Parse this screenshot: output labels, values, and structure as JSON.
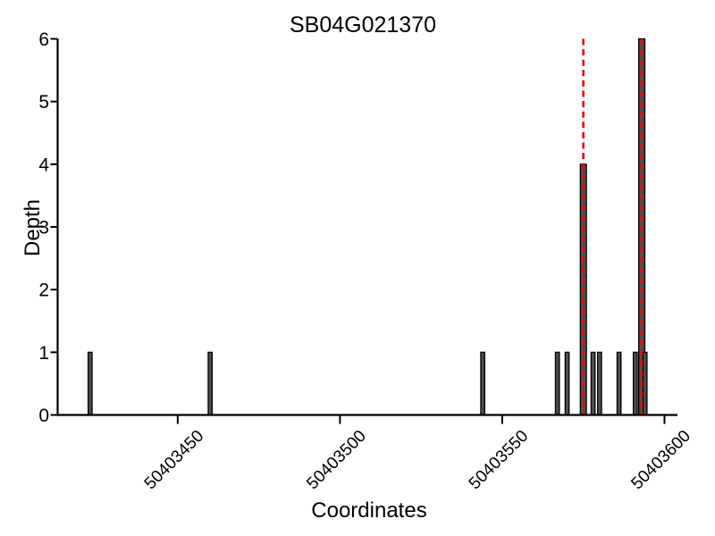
{
  "figure": {
    "title": "SB04G021370",
    "xlabel": "Coordinates",
    "ylabel": "Depth"
  },
  "chart_data": {
    "type": "bar",
    "title": "SB04G021370",
    "xlabel": "Coordinates",
    "ylabel": "Depth",
    "xlim": [
      50403413,
      50403604
    ],
    "ylim": [
      0,
      6
    ],
    "xticks": [
      50403450,
      50403500,
      50403550,
      50403600
    ],
    "yticks": [
      0,
      1,
      2,
      3,
      4,
      5,
      6
    ],
    "grid": false,
    "legend": "none",
    "bars": [
      {
        "x": 50403423,
        "depth": 1
      },
      {
        "x": 50403460,
        "depth": 1
      },
      {
        "x": 50403544,
        "depth": 1
      },
      {
        "x": 50403567,
        "depth": 1
      },
      {
        "x": 50403570,
        "depth": 1
      },
      {
        "x": 50403575,
        "depth": 4
      },
      {
        "x": 50403578,
        "depth": 1
      },
      {
        "x": 50403580,
        "depth": 1
      },
      {
        "x": 50403586,
        "depth": 1
      },
      {
        "x": 50403591,
        "depth": 1
      },
      {
        "x": 50403593,
        "depth": 6
      },
      {
        "x": 50403594,
        "depth": 1
      }
    ],
    "vlines": {
      "positions": [
        50403575,
        50403593
      ],
      "style": "dashed",
      "color": "#ee0000"
    },
    "colors": {
      "bar_fill": "#4f4f4f",
      "bar_edge": "#000000",
      "axis": "#000000",
      "vline": "#ee0000",
      "background": "#ffffff",
      "text": "#000000"
    }
  }
}
